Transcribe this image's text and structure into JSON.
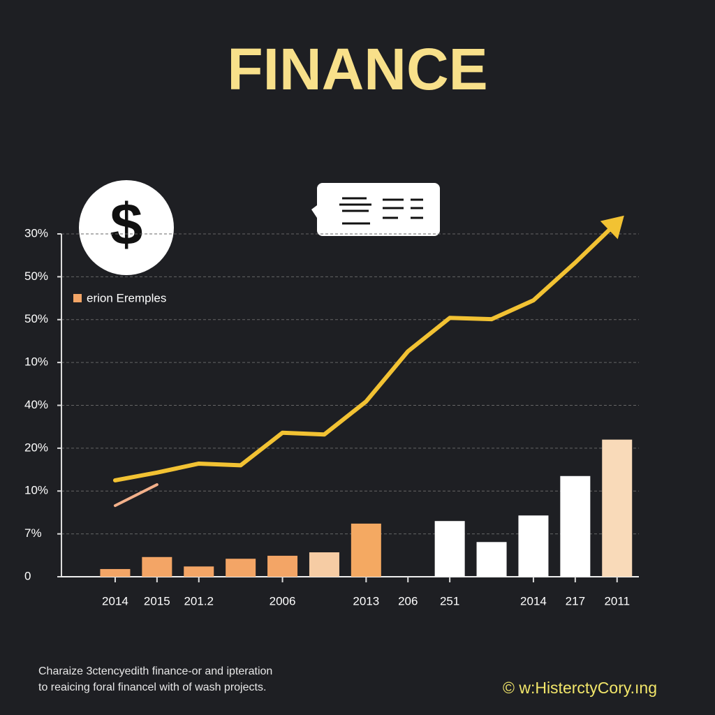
{
  "chart_data": {
    "type": "bar",
    "title": "FINANCE",
    "icon": "$",
    "categories": [
      "2014",
      "2015",
      "201.2",
      null,
      "2006",
      null,
      "2013",
      "206",
      "251",
      null,
      "2014",
      "217",
      "2011"
    ],
    "series": [
      {
        "name": "erion Eremples",
        "type": "bar",
        "color": "#f3a566",
        "colors": [
          "#f3a566",
          "#f3a566",
          "#f3a566",
          "#f3a566",
          "#f3a566",
          "#f6cca4",
          "#f4a962",
          null,
          "#ffffff",
          "#ffffff",
          "#ffffff",
          "#ffffff",
          "#f9dab9"
        ],
        "values": [
          0.18,
          0.46,
          0.24,
          0.42,
          0.49,
          0.57,
          1.24,
          null,
          1.3,
          0.81,
          1.43,
          2.35,
          3.2
        ]
      },
      {
        "type": "line",
        "color": "#f2c233",
        "values": [
          2.25,
          2.43,
          2.64,
          2.6,
          3.36,
          3.32,
          4.09,
          5.26,
          6.04,
          6.01,
          6.45,
          7.33,
          8.27
        ]
      },
      {
        "type": "line",
        "color": "#f3b08a",
        "values": [
          1.66,
          2.15,
          null,
          null,
          null,
          null,
          null,
          null,
          null,
          null,
          null,
          null,
          null
        ]
      }
    ],
    "ylim": [
      0,
      8
    ],
    "yticks": [
      0,
      {
        "value": 1,
        "label": "7%"
      },
      {
        "value": 2,
        "label": "10%"
      },
      {
        "value": 3,
        "label": "20%"
      },
      {
        "value": 4,
        "label": "40%"
      },
      {
        "value": 5,
        "label": "10%"
      },
      {
        "value": 6,
        "label": "50%"
      },
      {
        "value": 7,
        "label": "50%"
      },
      {
        "value": 8,
        "label": "30%"
      }
    ],
    "grid": true,
    "footnote": [
      "Charaize 3ctencyedith finance-or and ipteration",
      "to reaicing foral financel with of wash projects."
    ],
    "credit": "©  w:HisterctyCory.ıng"
  }
}
